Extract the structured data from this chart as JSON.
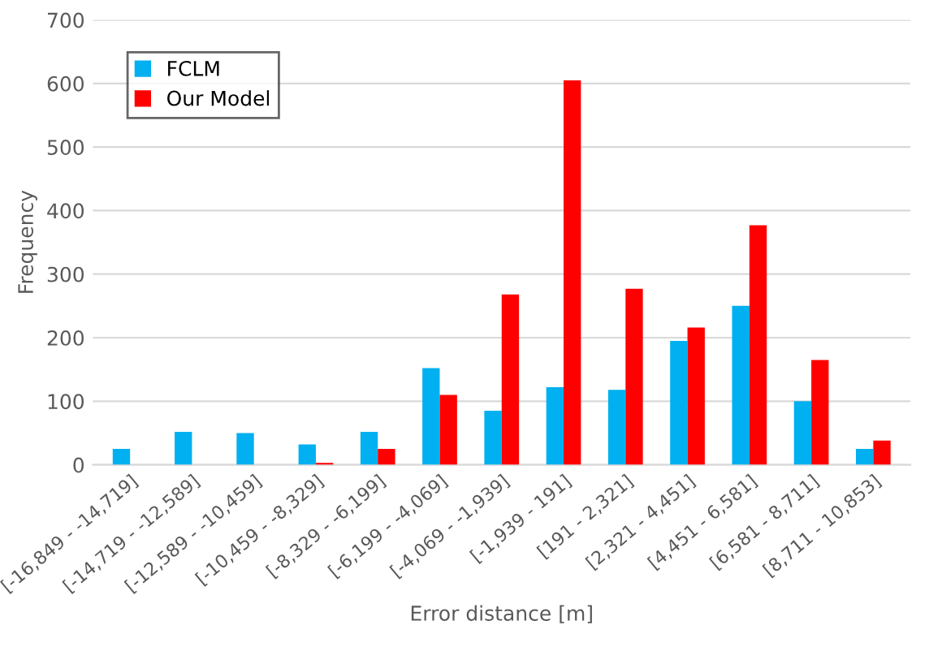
{
  "chart_data": {
    "type": "bar",
    "xlabel": "Error distance [m]",
    "ylabel": "Frequency",
    "categories": [
      "[-16,849 - -14,719]",
      "[-14,719 - -12,589]",
      "[-12,589 - -10,459]",
      "[-10,459 - -8,329]",
      "[-8,329 - -6,199]",
      "[-6,199 - -4,069]",
      "[-4,069 - -1,939]",
      "[-1,939 - 191]",
      "[191 - 2,321]",
      "[2,321 - 4,451]",
      "[4,451 - 6,581]",
      "[6,581 - 8,711]",
      "[8,711 - 10,853]"
    ],
    "series": [
      {
        "name": "FCLM",
        "color": "#00b0f0",
        "values": [
          25,
          52,
          50,
          32,
          52,
          152,
          85,
          122,
          118,
          195,
          250,
          100,
          25
        ]
      },
      {
        "name": "Our Model",
        "color": "#ff0000",
        "values": [
          0,
          0,
          0,
          3,
          25,
          110,
          268,
          605,
          277,
          216,
          377,
          165,
          38
        ]
      }
    ],
    "ylim": [
      0,
      700
    ],
    "yticks": [
      0,
      100,
      200,
      300,
      400,
      500,
      600,
      700
    ],
    "grid": "y",
    "legend": "top left"
  }
}
